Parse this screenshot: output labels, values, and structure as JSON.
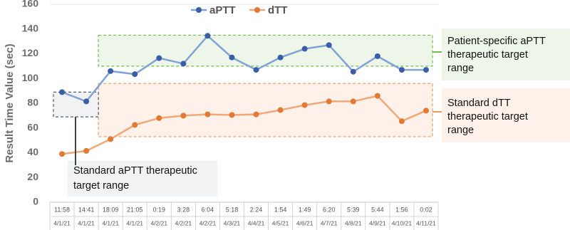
{
  "chart_data": {
    "type": "line",
    "y_label": "Result Time Value (sec)",
    "categories": [
      "11:58",
      "14:41",
      "18:09",
      "21:05",
      "0:19",
      "3:28",
      "6:04",
      "5:18",
      "2:24",
      "1:54",
      "1:49",
      "6:20",
      "5:39",
      "5:44",
      "1:56",
      "0:02"
    ],
    "category_dates": [
      "4/1/21",
      "4/1/21",
      "4/1/21",
      "4/1/21",
      "4/2/21",
      "4/2/21",
      "4/2/21",
      "4/3/21",
      "4/4/21",
      "4/5/21",
      "4/6/21",
      "4/7/21",
      "4/8/21",
      "4/9/21",
      "4/10/21",
      "4/11/21"
    ],
    "series": [
      {
        "name": "aPTT",
        "color": "#3a5da8",
        "line_color": "#7fa3d6",
        "values": [
          89,
          81.5,
          106,
          103.5,
          116.5,
          112,
          134.5,
          117,
          107,
          117,
          124,
          127,
          105.5,
          118,
          107,
          107
        ]
      },
      {
        "name": "dTT",
        "color": "#e27a33",
        "line_color": "#f0a877",
        "values": [
          39,
          41.5,
          51,
          62.5,
          68,
          70,
          71,
          70.5,
          71,
          74.5,
          78.5,
          81.5,
          81.5,
          86,
          65.5,
          74
        ]
      }
    ],
    "ylim": [
      0,
      160
    ],
    "yticks": [
      0,
      20,
      40,
      60,
      80,
      100,
      120,
      140,
      160
    ],
    "ranges": [
      {
        "label_lines": [
          "Patient-specific aPTT",
          "therapeutic target",
          "range"
        ],
        "ymin": 110,
        "ymax": 135,
        "color": "#6cbf4a",
        "fill": "#eef6ea"
      },
      {
        "label_lines": [
          "Standard dTT",
          "therapeutic target",
          "range"
        ],
        "ymin": 53,
        "ymax": 96,
        "color": "#ec9a5a",
        "fill": "#fdf1ea"
      },
      {
        "label_lines": [
          "Standard aPTT therapeutic",
          "target range"
        ],
        "ymin": 69,
        "ymax": 89,
        "color": "#555c66",
        "fill": "#f1f2f4"
      }
    ]
  }
}
